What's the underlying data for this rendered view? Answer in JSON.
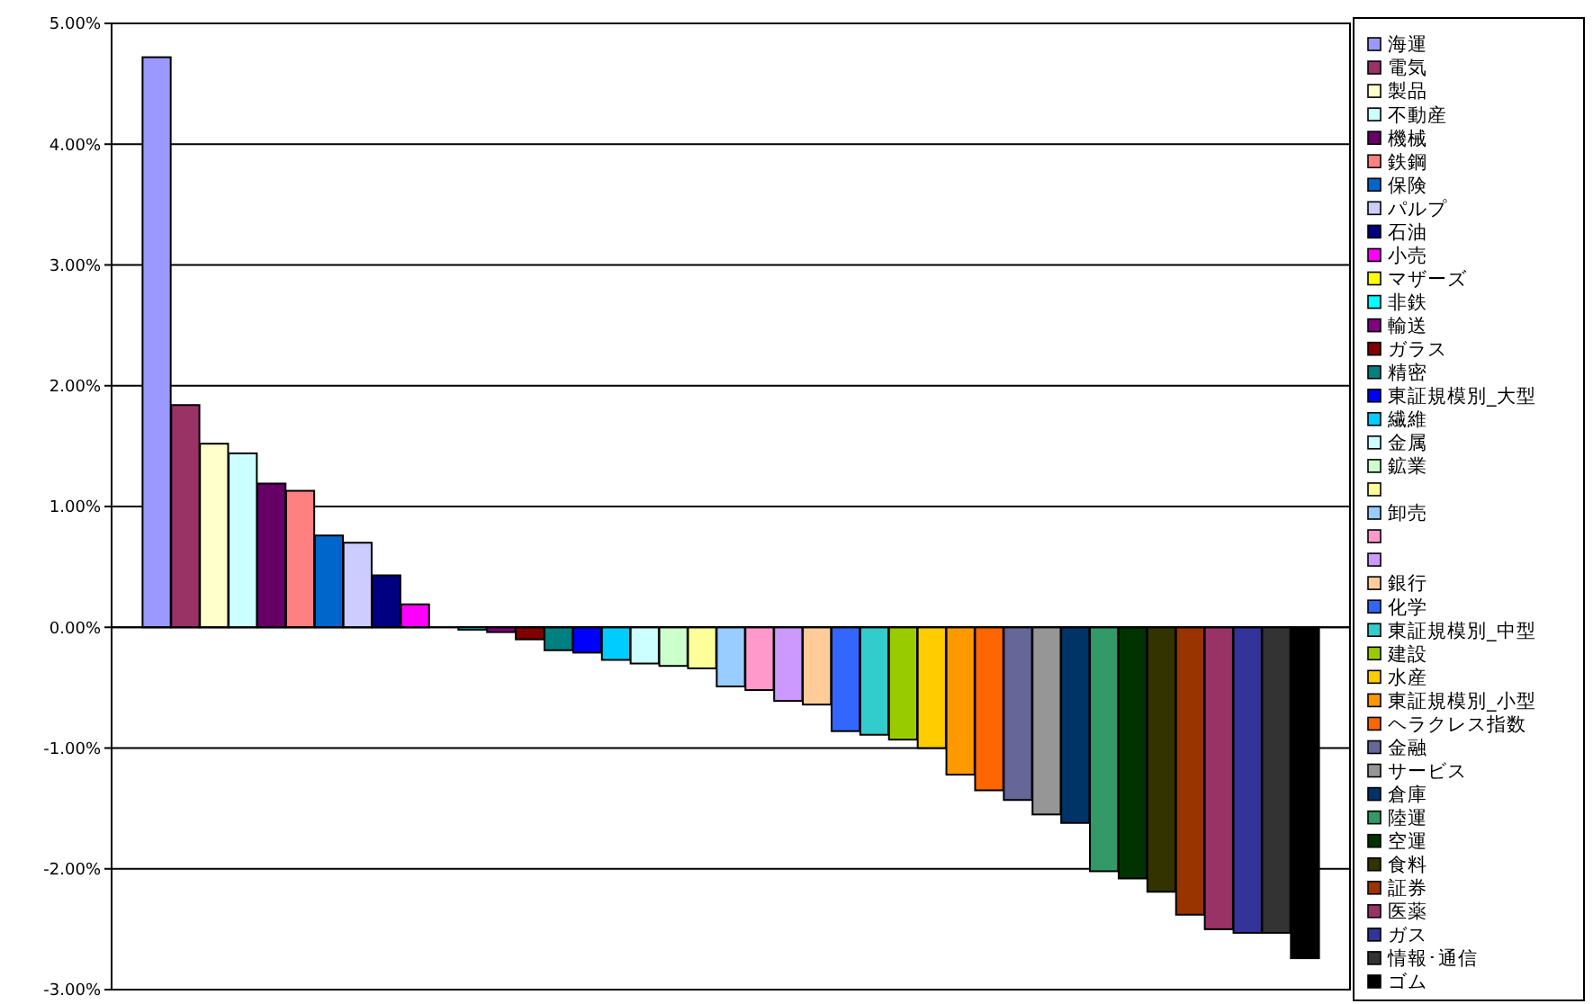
{
  "chart_data": {
    "type": "bar",
    "categories": [
      null
    ],
    "series": [
      {
        "name": "海運",
        "color": "#9999ff",
        "values": [
          4.72
        ]
      },
      {
        "name": "電気",
        "color": "#993366",
        "values": [
          1.84
        ]
      },
      {
        "name": "製品",
        "color": "#ffffcc",
        "values": [
          1.52
        ]
      },
      {
        "name": "不動産",
        "color": "#ccffff",
        "values": [
          1.44
        ]
      },
      {
        "name": "機械",
        "color": "#660066",
        "values": [
          1.19
        ]
      },
      {
        "name": "鉄鋼",
        "color": "#ff8080",
        "values": [
          1.13
        ]
      },
      {
        "name": "保険",
        "color": "#0066cc",
        "values": [
          0.76
        ]
      },
      {
        "name": "パルプ",
        "color": "#ccccff",
        "values": [
          0.7
        ]
      },
      {
        "name": "石油",
        "color": "#000080",
        "values": [
          0.43
        ]
      },
      {
        "name": "小売",
        "color": "#ff00ff",
        "values": [
          0.19
        ]
      },
      {
        "name": "マザーズ",
        "color": "#ffff00",
        "values": [
          0.0
        ]
      },
      {
        "name": "非鉄",
        "color": "#00ffff",
        "values": [
          -0.02
        ]
      },
      {
        "name": "輸送",
        "color": "#800080",
        "values": [
          -0.04
        ]
      },
      {
        "name": "ガラス",
        "color": "#800000",
        "values": [
          -0.1
        ]
      },
      {
        "name": "精密",
        "color": "#008080",
        "values": [
          -0.19
        ]
      },
      {
        "name": "東証規模別_大型",
        "color": "#0000ff",
        "values": [
          -0.21
        ]
      },
      {
        "name": "繊維",
        "color": "#00ccff",
        "values": [
          -0.27
        ]
      },
      {
        "name": "金属",
        "color": "#ccffff",
        "values": [
          -0.3
        ]
      },
      {
        "name": "鉱業",
        "color": "#ccffcc",
        "values": [
          -0.32
        ]
      },
      {
        "color": "#ffff99",
        "values": [
          -0.34
        ]
      },
      {
        "name": "卸売",
        "color": "#99ccff",
        "values": [
          -0.49
        ]
      },
      {
        "color": "#ff99cc",
        "values": [
          -0.52
        ]
      },
      {
        "color": "#cc99ff",
        "values": [
          -0.61
        ]
      },
      {
        "name": "銀行",
        "color": "#ffcc99",
        "values": [
          -0.64
        ]
      },
      {
        "name": "化学",
        "color": "#3366ff",
        "values": [
          -0.86
        ]
      },
      {
        "name": "東証規模別_中型",
        "color": "#33cccc",
        "values": [
          -0.89
        ]
      },
      {
        "name": "建設",
        "color": "#99cc00",
        "values": [
          -0.93
        ]
      },
      {
        "name": "水産",
        "color": "#ffcc00",
        "values": [
          -1.0
        ]
      },
      {
        "name": "東証規模別_小型",
        "color": "#ff9900",
        "values": [
          -1.22
        ]
      },
      {
        "name": "ヘラクレス指数",
        "color": "#ff6600",
        "values": [
          -1.35
        ]
      },
      {
        "name": "金融",
        "color": "#666699",
        "values": [
          -1.43
        ]
      },
      {
        "name": "サービス",
        "color": "#969696",
        "values": [
          -1.55
        ]
      },
      {
        "name": "倉庫",
        "color": "#003366",
        "values": [
          -1.62
        ]
      },
      {
        "name": "陸運",
        "color": "#339966",
        "values": [
          -2.02
        ]
      },
      {
        "name": "空運",
        "color": "#003300",
        "values": [
          -2.08
        ]
      },
      {
        "name": "食料",
        "color": "#333300",
        "values": [
          -2.19
        ]
      },
      {
        "name": "証券",
        "color": "#993300",
        "values": [
          -2.38
        ]
      },
      {
        "name": "医薬",
        "color": "#993366",
        "values": [
          -2.5
        ]
      },
      {
        "name": "ガス",
        "color": "#333399",
        "values": [
          -2.53
        ]
      },
      {
        "name": "情報･通信",
        "color": "#333333",
        "values": [
          -2.53
        ]
      },
      {
        "name": "ゴム",
        "color": "#000000",
        "values": [
          -2.74
        ]
      }
    ],
    "ylim": [
      -3,
      5
    ],
    "yticks": [
      {
        "value": -3,
        "label": "-3.00%"
      },
      {
        "value": -2,
        "label": "-2.00%"
      },
      {
        "value": -1,
        "label": "-1.00%"
      },
      {
        "value": 0,
        "label": "0.00%"
      },
      {
        "value": 1,
        "label": "1.00%"
      },
      {
        "value": 2,
        "label": "2.00%"
      },
      {
        "value": 3,
        "label": "3.00%"
      },
      {
        "value": 4,
        "label": "4.00%"
      },
      {
        "value": 5,
        "label": "5.00%"
      }
    ],
    "grid": "y",
    "legend": "right",
    "tick_labels": "y"
  }
}
